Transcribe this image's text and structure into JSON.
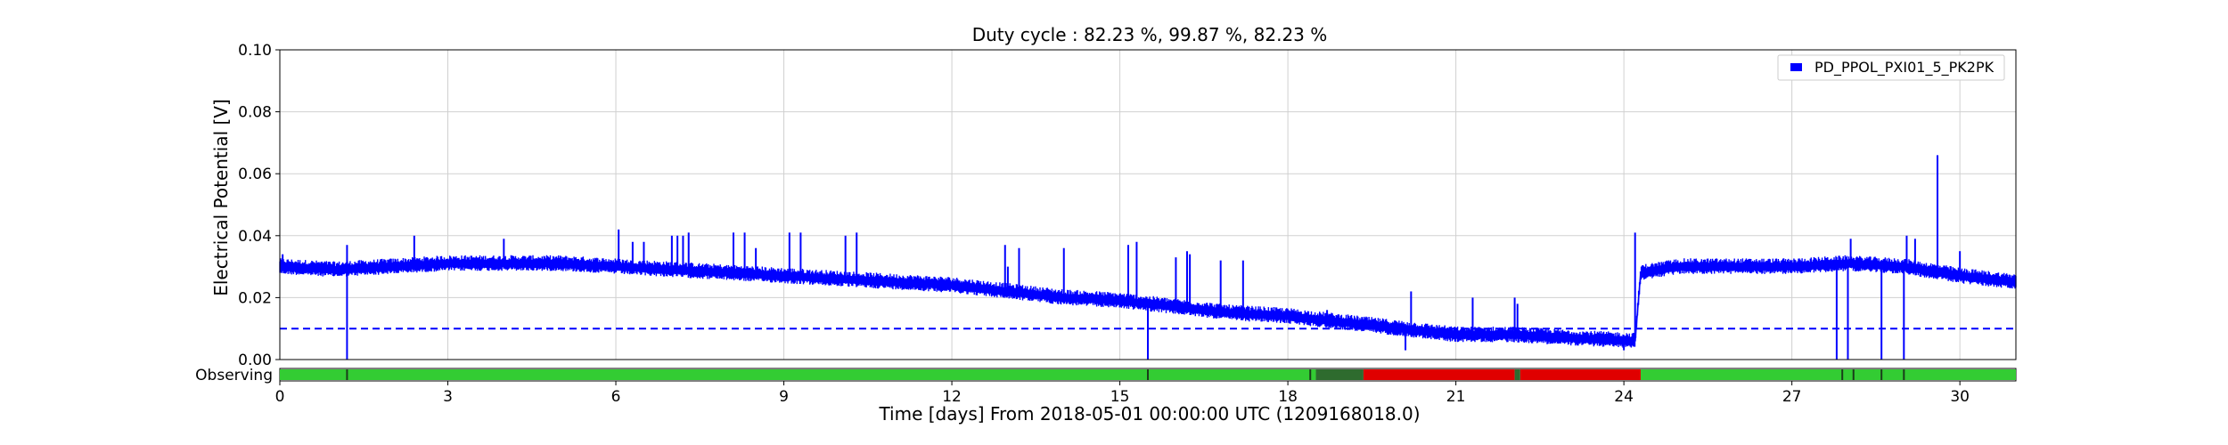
{
  "chart_data": {
    "type": "line",
    "title": "Duty cycle : 82.23 %, 99.87 %, 82.23 %",
    "xlabel": "Time [days] From 2018-05-01 00:00:00 UTC (1209168018.0)",
    "ylabel": "Electrical Potential [V]",
    "xlim": [
      0,
      31
    ],
    "ylim": [
      0,
      0.1
    ],
    "xticks": [
      0,
      3,
      6,
      9,
      12,
      15,
      18,
      21,
      24,
      27,
      30
    ],
    "yticks": [
      0.0,
      0.02,
      0.04,
      0.06,
      0.08,
      0.1
    ],
    "ytick_labels": [
      "0.00",
      "0.02",
      "0.04",
      "0.06",
      "0.08",
      "0.10"
    ],
    "grid": true,
    "legend_position": "top-right",
    "series": [
      {
        "name": "PD_PPOL_PXI01_5_PK2PK",
        "color": "#0000ff",
        "baseline": [
          [
            0,
            0.03
          ],
          [
            1,
            0.029
          ],
          [
            2,
            0.03
          ],
          [
            3,
            0.031
          ],
          [
            4,
            0.031
          ],
          [
            5,
            0.031
          ],
          [
            6,
            0.03
          ],
          [
            7,
            0.029
          ],
          [
            8,
            0.028
          ],
          [
            9,
            0.027
          ],
          [
            10,
            0.026
          ],
          [
            11,
            0.025
          ],
          [
            12,
            0.024
          ],
          [
            13,
            0.022
          ],
          [
            14,
            0.02
          ],
          [
            15,
            0.019
          ],
          [
            16,
            0.017
          ],
          [
            17,
            0.015
          ],
          [
            18,
            0.014
          ],
          [
            19,
            0.012
          ],
          [
            20,
            0.01
          ],
          [
            21,
            0.008
          ],
          [
            22,
            0.008
          ],
          [
            23,
            0.007
          ],
          [
            24.2,
            0.006
          ],
          [
            24.3,
            0.028
          ],
          [
            25,
            0.03
          ],
          [
            26,
            0.03
          ],
          [
            27,
            0.03
          ],
          [
            28,
            0.031
          ],
          [
            29,
            0.03
          ],
          [
            30,
            0.027
          ],
          [
            31,
            0.025
          ]
        ],
        "spikes": [
          [
            0.05,
            0.034
          ],
          [
            1.2,
            0.0
          ],
          [
            1.2,
            0.037
          ],
          [
            2.4,
            0.04
          ],
          [
            4.0,
            0.039
          ],
          [
            6.05,
            0.042
          ],
          [
            6.3,
            0.038
          ],
          [
            6.5,
            0.038
          ],
          [
            7.0,
            0.04
          ],
          [
            7.1,
            0.04
          ],
          [
            7.2,
            0.04
          ],
          [
            7.3,
            0.041
          ],
          [
            8.1,
            0.041
          ],
          [
            8.3,
            0.041
          ],
          [
            8.5,
            0.036
          ],
          [
            9.1,
            0.041
          ],
          [
            9.3,
            0.041
          ],
          [
            10.1,
            0.04
          ],
          [
            10.3,
            0.041
          ],
          [
            12.95,
            0.037
          ],
          [
            13.0,
            0.03
          ],
          [
            13.2,
            0.036
          ],
          [
            14.0,
            0.036
          ],
          [
            15.15,
            0.037
          ],
          [
            15.3,
            0.038
          ],
          [
            15.5,
            0.0
          ],
          [
            16.0,
            0.033
          ],
          [
            16.2,
            0.035
          ],
          [
            16.25,
            0.034
          ],
          [
            16.8,
            0.032
          ],
          [
            17.2,
            0.032
          ],
          [
            18.7,
            0.016
          ],
          [
            20.1,
            0.003
          ],
          [
            20.2,
            0.022
          ],
          [
            21.3,
            0.02
          ],
          [
            22.05,
            0.02
          ],
          [
            22.1,
            0.018
          ],
          [
            24.0,
            0.003
          ],
          [
            24.2,
            0.041
          ],
          [
            27.8,
            0.0
          ],
          [
            27.85,
            0.03
          ],
          [
            28.0,
            0.0
          ],
          [
            28.05,
            0.039
          ],
          [
            28.6,
            0.0
          ],
          [
            28.65,
            0.03
          ],
          [
            29.0,
            0.0
          ],
          [
            29.05,
            0.04
          ],
          [
            29.2,
            0.039
          ],
          [
            29.6,
            0.066
          ],
          [
            30.0,
            0.035
          ]
        ]
      }
    ],
    "threshold": {
      "value": 0.01,
      "color": "#0000ff",
      "style": "dashed"
    },
    "segment_bar": {
      "label": "Observing",
      "segments": [
        {
          "start": 0,
          "end": 18.5,
          "color": "#33cc33"
        },
        {
          "start": 18.5,
          "end": 19.35,
          "color": "#2e6b2e"
        },
        {
          "start": 19.35,
          "end": 22.05,
          "color": "#e00000"
        },
        {
          "start": 22.05,
          "end": 22.15,
          "color": "#2e6b2e"
        },
        {
          "start": 22.15,
          "end": 24.3,
          "color": "#e00000"
        },
        {
          "start": 24.3,
          "end": 31,
          "color": "#33cc33"
        }
      ],
      "marks": [
        1.2,
        15.5,
        18.4,
        27.9,
        28.1,
        28.6,
        29.0
      ]
    }
  }
}
